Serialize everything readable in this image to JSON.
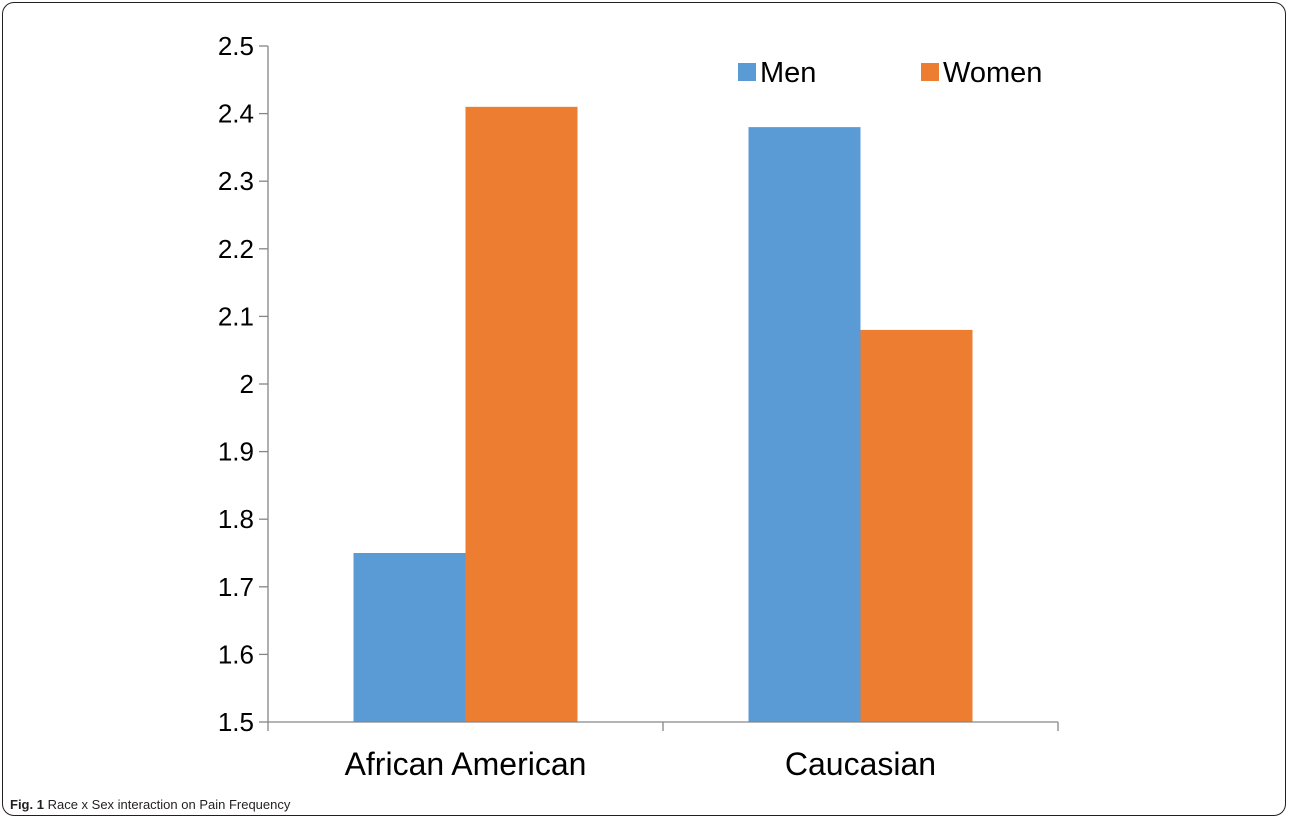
{
  "figure": {
    "caption_label": "Fig. 1",
    "caption_text": "Race x Sex interaction on Pain Frequency"
  },
  "chart_data": {
    "type": "bar",
    "categories": [
      "African American",
      "Caucasian"
    ],
    "series": [
      {
        "name": "Men",
        "color": "#5b9bd5",
        "values": [
          1.75,
          2.38
        ]
      },
      {
        "name": "Women",
        "color": "#ed7d31",
        "values": [
          2.41,
          2.08
        ]
      }
    ],
    "yticks": [
      "1.5",
      "1.6",
      "1.7",
      "1.8",
      "1.9",
      "2",
      "2.1",
      "2.2",
      "2.3",
      "2.4",
      "2.5"
    ],
    "ylim": [
      1.5,
      2.5
    ],
    "title": "",
    "xlabel": "",
    "ylabel": "",
    "grid": false,
    "legend_position": "top-right"
  }
}
